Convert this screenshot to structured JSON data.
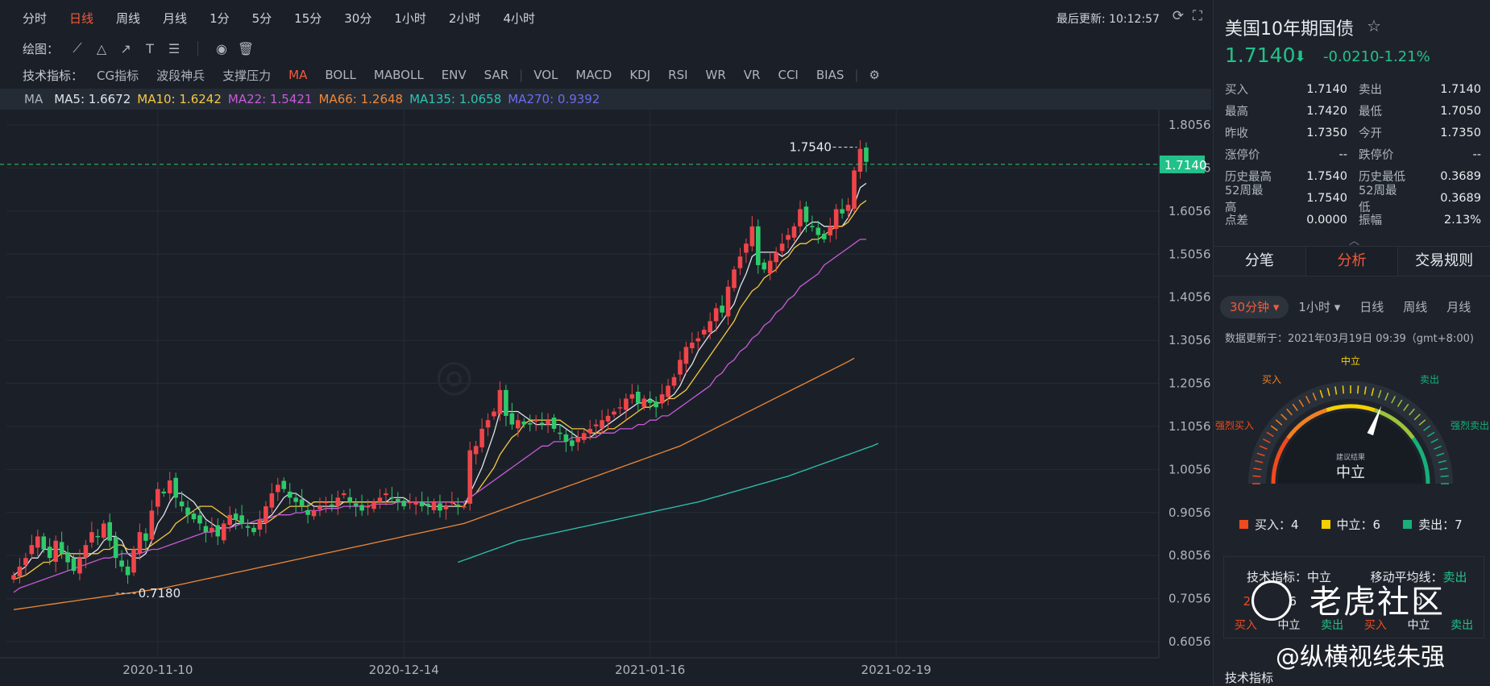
{
  "periods": [
    "分时",
    "日线",
    "周线",
    "月线",
    "1分",
    "5分",
    "15分",
    "30分",
    "1小时",
    "2小时",
    "4小时"
  ],
  "active_period": 1,
  "last_update": "最后更新: 10:12:57",
  "drawing": {
    "label": "绘图："
  },
  "indicators": {
    "label": "技术指标：",
    "group1": [
      "CG指标",
      "波段神兵",
      "支撑压力",
      "MA",
      "BOLL",
      "MABOLL",
      "ENV",
      "SAR"
    ],
    "group2": [
      "VOL",
      "MACD",
      "KDJ",
      "RSI",
      "WR",
      "VR",
      "CCI",
      "BIAS"
    ],
    "active": "MA"
  },
  "ma_values": [
    {
      "text": "MA",
      "color": "#aeb4bd"
    },
    {
      "text": "MA5: 1.6672",
      "color": "#e0e4ea"
    },
    {
      "text": "MA10: 1.6242",
      "color": "#f5c842"
    },
    {
      "text": "MA22: 1.5421",
      "color": "#c85ad8"
    },
    {
      "text": "MA66: 1.2648",
      "color": "#f08838"
    },
    {
      "text": "MA135: 1.0658",
      "color": "#2ec4b0"
    },
    {
      "text": "MA270: 0.9392",
      "color": "#6a6cf0"
    }
  ],
  "chart_data": {
    "type": "candlestick",
    "yticks": [
      "1.8056",
      "1.7056",
      "1.6056",
      "1.5056",
      "1.4056",
      "1.3056",
      "1.2056",
      "1.1056",
      "1.0056",
      "0.9056",
      "0.8056",
      "0.7056",
      "0.6056"
    ],
    "ylim": [
      0.6056,
      1.8056
    ],
    "xticks": [
      {
        "label": "2020-11-10",
        "index": 24
      },
      {
        "label": "2020-12-14",
        "index": 65
      },
      {
        "label": "2021-01-16",
        "index": 106
      },
      {
        "label": "2021-02-19",
        "index": 147
      }
    ],
    "current_price": "1.7140",
    "high_label": "1.7540",
    "low_label": "0.7180",
    "candles_close": [
      0.76,
      0.78,
      0.8,
      0.83,
      0.85,
      0.82,
      0.8,
      0.84,
      0.81,
      0.79,
      0.77,
      0.8,
      0.83,
      0.86,
      0.85,
      0.88,
      0.84,
      0.8,
      0.78,
      0.76,
      0.82,
      0.86,
      0.84,
      0.91,
      0.96,
      0.95,
      0.98,
      0.94,
      0.92,
      0.9,
      0.89,
      0.88,
      0.86,
      0.87,
      0.85,
      0.88,
      0.9,
      0.89,
      0.88,
      0.87,
      0.86,
      0.89,
      0.92,
      0.95,
      0.97,
      0.96,
      0.94,
      0.93,
      0.92,
      0.9,
      0.91,
      0.92,
      0.93,
      0.92,
      0.94,
      0.95,
      0.93,
      0.92,
      0.91,
      0.92,
      0.93,
      0.94,
      0.95,
      0.94,
      0.93,
      0.92,
      0.93,
      0.93,
      0.92,
      0.92,
      0.93,
      0.91,
      0.92,
      0.93,
      0.92,
      0.92,
      1.05,
      1.06,
      1.1,
      1.12,
      1.14,
      1.19,
      1.13,
      1.11,
      1.12,
      1.11,
      1.11,
      1.12,
      1.11,
      1.12,
      1.1,
      1.09,
      1.07,
      1.06,
      1.08,
      1.09,
      1.1,
      1.11,
      1.12,
      1.13,
      1.14,
      1.15,
      1.17,
      1.18,
      1.16,
      1.17,
      1.16,
      1.15,
      1.18,
      1.2,
      1.22,
      1.26,
      1.29,
      1.3,
      1.31,
      1.33,
      1.35,
      1.38,
      1.37,
      1.43,
      1.47,
      1.5,
      1.53,
      1.57,
      1.48,
      1.47,
      1.49,
      1.51,
      1.53,
      1.55,
      1.57,
      1.61,
      1.58,
      1.57,
      1.55,
      1.54,
      1.57,
      1.61,
      1.6,
      1.62,
      1.7,
      1.75,
      1.72
    ],
    "ma_series": [
      {
        "name": "MA5",
        "color": "#e0e4ea",
        "values": [
          0.76,
          0.77,
          0.78,
          0.8,
          0.8,
          0.82,
          0.82,
          0.82,
          0.82,
          0.81,
          0.8,
          0.8,
          0.8,
          0.81,
          0.82,
          0.84,
          0.85,
          0.85,
          0.84,
          0.81,
          0.8,
          0.8,
          0.81,
          0.84,
          0.88,
          0.9,
          0.93,
          0.95,
          0.95,
          0.94,
          0.93,
          0.91,
          0.89,
          0.88,
          0.87,
          0.87,
          0.87,
          0.88,
          0.88,
          0.88,
          0.88,
          0.88,
          0.89,
          0.9,
          0.92,
          0.94,
          0.95,
          0.95,
          0.94,
          0.93,
          0.92,
          0.92,
          0.92,
          0.92,
          0.92,
          0.93,
          0.93,
          0.93,
          0.93,
          0.93,
          0.93,
          0.93,
          0.93,
          0.94,
          0.94,
          0.94,
          0.93,
          0.93,
          0.93,
          0.92,
          0.92,
          0.92,
          0.92,
          0.92,
          0.92,
          0.92,
          0.95,
          0.98,
          1.01,
          1.05,
          1.09,
          1.14,
          1.14,
          1.14,
          1.14,
          1.13,
          1.12,
          1.11,
          1.11,
          1.11,
          1.11,
          1.11,
          1.1,
          1.09,
          1.08,
          1.08,
          1.08,
          1.09,
          1.1,
          1.11,
          1.12,
          1.13,
          1.14,
          1.15,
          1.16,
          1.16,
          1.17,
          1.16,
          1.16,
          1.17,
          1.18,
          1.2,
          1.23,
          1.25,
          1.28,
          1.3,
          1.32,
          1.33,
          1.35,
          1.37,
          1.39,
          1.43,
          1.46,
          1.5,
          1.51,
          1.51,
          1.51,
          1.51,
          1.5,
          1.51,
          1.53,
          1.55,
          1.57,
          1.58,
          1.58,
          1.57,
          1.57,
          1.57,
          1.57,
          1.59,
          1.62,
          1.66,
          1.67
        ]
      },
      {
        "name": "MA10",
        "color": "#f5c842",
        "values": [
          0.75,
          0.755,
          0.76,
          0.77,
          0.78,
          0.79,
          0.79,
          0.8,
          0.81,
          0.81,
          0.81,
          0.81,
          0.81,
          0.81,
          0.81,
          0.82,
          0.82,
          0.83,
          0.83,
          0.82,
          0.82,
          0.82,
          0.82,
          0.83,
          0.84,
          0.85,
          0.86,
          0.88,
          0.89,
          0.9,
          0.91,
          0.92,
          0.92,
          0.92,
          0.91,
          0.9,
          0.89,
          0.89,
          0.88,
          0.88,
          0.88,
          0.88,
          0.88,
          0.89,
          0.9,
          0.91,
          0.92,
          0.92,
          0.92,
          0.92,
          0.93,
          0.93,
          0.93,
          0.93,
          0.93,
          0.93,
          0.93,
          0.93,
          0.93,
          0.93,
          0.93,
          0.93,
          0.93,
          0.93,
          0.93,
          0.93,
          0.93,
          0.93,
          0.93,
          0.93,
          0.93,
          0.93,
          0.93,
          0.93,
          0.92,
          0.92,
          0.94,
          0.95,
          0.97,
          0.99,
          1.01,
          1.04,
          1.06,
          1.08,
          1.09,
          1.11,
          1.12,
          1.12,
          1.12,
          1.12,
          1.12,
          1.12,
          1.11,
          1.1,
          1.1,
          1.1,
          1.09,
          1.09,
          1.09,
          1.1,
          1.1,
          1.11,
          1.12,
          1.13,
          1.14,
          1.15,
          1.15,
          1.16,
          1.16,
          1.17,
          1.17,
          1.18,
          1.19,
          1.21,
          1.23,
          1.25,
          1.27,
          1.29,
          1.31,
          1.33,
          1.35,
          1.38,
          1.4,
          1.42,
          1.43,
          1.45,
          1.46,
          1.47,
          1.49,
          1.5,
          1.52,
          1.53,
          1.53,
          1.54,
          1.54,
          1.55,
          1.56,
          1.57,
          1.57,
          1.58,
          1.6,
          1.62,
          1.63
        ]
      },
      {
        "name": "MA22",
        "color": "#c85ad8",
        "values": [
          0.72,
          0.73,
          0.735,
          0.74,
          0.745,
          0.75,
          0.755,
          0.76,
          0.765,
          0.77,
          0.775,
          0.78,
          0.785,
          0.79,
          0.795,
          0.8,
          0.8,
          0.805,
          0.81,
          0.81,
          0.81,
          0.81,
          0.815,
          0.82,
          0.82,
          0.825,
          0.83,
          0.835,
          0.84,
          0.845,
          0.85,
          0.855,
          0.86,
          0.86,
          0.865,
          0.87,
          0.87,
          0.875,
          0.88,
          0.88,
          0.885,
          0.89,
          0.89,
          0.895,
          0.9,
          0.9,
          0.9,
          0.905,
          0.905,
          0.91,
          0.91,
          0.91,
          0.915,
          0.915,
          0.915,
          0.92,
          0.92,
          0.92,
          0.92,
          0.92,
          0.925,
          0.925,
          0.925,
          0.925,
          0.93,
          0.93,
          0.93,
          0.93,
          0.93,
          0.93,
          0.93,
          0.93,
          0.93,
          0.93,
          0.93,
          0.93,
          0.94,
          0.95,
          0.96,
          0.97,
          0.98,
          0.99,
          1.0,
          1.01,
          1.02,
          1.03,
          1.04,
          1.05,
          1.06,
          1.06,
          1.07,
          1.07,
          1.07,
          1.08,
          1.08,
          1.08,
          1.08,
          1.08,
          1.09,
          1.09,
          1.09,
          1.1,
          1.1,
          1.1,
          1.11,
          1.11,
          1.12,
          1.12,
          1.13,
          1.13,
          1.14,
          1.15,
          1.16,
          1.17,
          1.18,
          1.19,
          1.2,
          1.22,
          1.23,
          1.25,
          1.26,
          1.28,
          1.29,
          1.31,
          1.32,
          1.34,
          1.35,
          1.37,
          1.38,
          1.4,
          1.41,
          1.43,
          1.44,
          1.45,
          1.46,
          1.48,
          1.49,
          1.5,
          1.51,
          1.52,
          1.53,
          1.54,
          1.54
        ]
      },
      {
        "name": "MA66",
        "color": "#f08838",
        "values": [
          0.68,
          0.682,
          0.684,
          0.686,
          0.688,
          0.69,
          0.692,
          0.694,
          0.696,
          0.698,
          0.7,
          0.702,
          0.704,
          0.706,
          0.708,
          0.71,
          0.712,
          0.714,
          0.716,
          0.718,
          0.72,
          0.722,
          0.724,
          0.726,
          0.728,
          0.73,
          0.733,
          0.736,
          0.739,
          0.742,
          0.745,
          0.748,
          0.751,
          0.754,
          0.757,
          0.76,
          0.763,
          0.766,
          0.769,
          0.772,
          0.775,
          0.778,
          0.781,
          0.784,
          0.787,
          0.79,
          0.793,
          0.796,
          0.799,
          0.802,
          0.805,
          0.808,
          0.811,
          0.814,
          0.817,
          0.82,
          0.823,
          0.826,
          0.829,
          0.832,
          0.835,
          0.838,
          0.841,
          0.844,
          0.847,
          0.85,
          0.853,
          0.856,
          0.859,
          0.862,
          0.865,
          0.868,
          0.871,
          0.874,
          0.877,
          0.88,
          0.885,
          0.89,
          0.895,
          0.9,
          0.905,
          0.91,
          0.915,
          0.92,
          0.925,
          0.93,
          0.935,
          0.94,
          0.945,
          0.95,
          0.955,
          0.96,
          0.965,
          0.97,
          0.975,
          0.98,
          0.985,
          0.99,
          0.995,
          1.0,
          1.005,
          1.01,
          1.015,
          1.02,
          1.025,
          1.03,
          1.035,
          1.04,
          1.045,
          1.05,
          1.055,
          1.06,
          1.067,
          1.074,
          1.081,
          1.088,
          1.095,
          1.102,
          1.109,
          1.116,
          1.123,
          1.13,
          1.137,
          1.144,
          1.151,
          1.158,
          1.165,
          1.172,
          1.179,
          1.186,
          1.193,
          1.2,
          1.207,
          1.214,
          1.221,
          1.228,
          1.235,
          1.242,
          1.249,
          1.256,
          1.264
        ]
      },
      {
        "name": "MA135",
        "color": "#2ec4b0",
        "start": 74,
        "values": [
          0.79,
          0.795,
          0.8,
          0.805,
          0.81,
          0.815,
          0.82,
          0.825,
          0.83,
          0.835,
          0.84,
          0.843,
          0.846,
          0.849,
          0.852,
          0.855,
          0.858,
          0.861,
          0.864,
          0.867,
          0.87,
          0.873,
          0.876,
          0.879,
          0.882,
          0.885,
          0.888,
          0.891,
          0.894,
          0.897,
          0.9,
          0.903,
          0.906,
          0.909,
          0.912,
          0.915,
          0.918,
          0.921,
          0.924,
          0.927,
          0.93,
          0.934,
          0.938,
          0.942,
          0.946,
          0.95,
          0.954,
          0.958,
          0.962,
          0.966,
          0.97,
          0.974,
          0.978,
          0.982,
          0.986,
          0.99,
          0.995,
          1.0,
          1.005,
          1.01,
          1.015,
          1.02,
          1.025,
          1.03,
          1.035,
          1.04,
          1.045,
          1.05,
          1.055,
          1.06,
          1.066
        ]
      }
    ]
  },
  "instrument": {
    "name": "美国10年期国债",
    "price": "1.7140",
    "change": "-0.0210",
    "change_pct": "-1.21%",
    "arrow_icon": "down-arrow-icon"
  },
  "stats": [
    {
      "k1": "买入",
      "v1": "1.7140",
      "k2": "卖出",
      "v2": "1.7140"
    },
    {
      "k1": "最高",
      "v1": "1.7420",
      "k2": "最低",
      "v2": "1.7050"
    },
    {
      "k1": "昨收",
      "v1": "1.7350",
      "k2": "今开",
      "v2": "1.7350"
    },
    {
      "k1": "涨停价",
      "v1": "--",
      "k2": "跌停价",
      "v2": "--"
    },
    {
      "k1": "历史最高",
      "v1": "1.7540",
      "k2": "历史最低",
      "v2": "0.3689"
    },
    {
      "k1": "52周最高",
      "v1": "1.7540",
      "k2": "52周最低",
      "v2": "0.3689"
    },
    {
      "k1": "点差",
      "v1": "0.0000",
      "k2": "振幅",
      "v2": "2.13%"
    }
  ],
  "tabs": [
    "分笔",
    "分析",
    "交易规则"
  ],
  "active_tab": 1,
  "sub_tabs": [
    "30分钟 ▾",
    "1小时 ▾",
    "日线",
    "周线",
    "月线"
  ],
  "active_sub_tab": 0,
  "updated": "数据更新于：2021年03月19日 09:39（gmt+8:00)",
  "gauge": {
    "labels": {
      "strong_buy": "强烈买入",
      "buy": "买入",
      "neutral": "中立",
      "sell": "卖出",
      "strong_sell": "强烈卖出"
    },
    "small_label": "建议结果",
    "result": "中立",
    "needle_value": 0.62
  },
  "legend": [
    {
      "label": "买入：4",
      "color": "#f04a1e"
    },
    {
      "label": "中立：6",
      "color": "#f5d000"
    },
    {
      "label": "卖出：7",
      "color": "#17b07a"
    }
  ],
  "summary": {
    "left_title": "技术指标：",
    "left_value": "中立",
    "left_nums": [
      "2",
      "6"
    ],
    "right_title": "移动平均线：",
    "right_value": "卖出",
    "right_nums": [
      "",
      "0"
    ],
    "labs": [
      "买入",
      "中立",
      "卖出"
    ]
  },
  "bottom_label": "技术指标",
  "watermark": {
    "line1": "老虎社区",
    "line2": "@纵横视线朱强"
  },
  "colors": {
    "up": "#f0454a",
    "down": "#2ec96a",
    "accent": "#f25a3c",
    "green": "#23c18a"
  }
}
